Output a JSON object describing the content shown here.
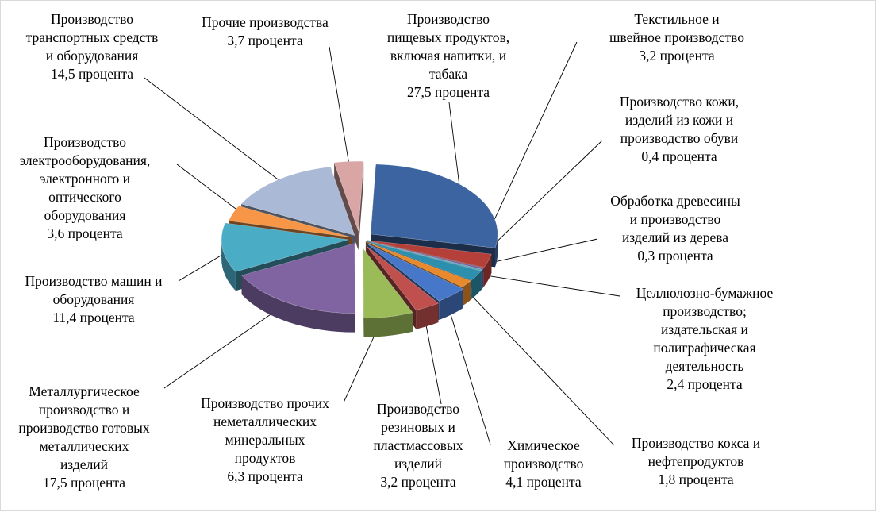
{
  "chart_data": {
    "type": "pie",
    "style": "3d-exploded",
    "unit": "процента",
    "slices": [
      {
        "name": "Производство пищевых продуктов, включая напитки, и табака",
        "value": 27.5,
        "color": "#3b64a0",
        "lines": [
          "Производство",
          "пищевых продуктов,",
          "включая напитки, и",
          "табака",
          "27,5 процента"
        ]
      },
      {
        "name": "Текстильное и швейное производство",
        "value": 3.2,
        "color": "#b5403a",
        "lines": [
          "Текстильное и",
          "швейное производство",
          "3,2 процента"
        ]
      },
      {
        "name": "Производство кожи, изделий из кожи и производство обуви",
        "value": 0.4,
        "color": "#7a5f9a",
        "lines": [
          "Производство кожи,",
          "изделий из кожи и",
          "производство обуви",
          "0,4 процента"
        ]
      },
      {
        "name": "Обработка древесины и производство изделий из дерева",
        "value": 0.3,
        "color": "#4ea6c0",
        "lines": [
          "Обработка древесины",
          "и производство",
          "изделий  из дерева",
          "0,3 процента"
        ]
      },
      {
        "name": "Целлюлозно-бумажное производство; издательская и полиграфическая деятельность",
        "value": 2.4,
        "color": "#2d8fae",
        "lines": [
          "Целлюлозно-бумажное",
          "производство;",
          "издательская и",
          "полиграфическая",
          "деятельность",
          "2,4  процента"
        ]
      },
      {
        "name": "Производство кокса и нефтепродуктов",
        "value": 1.8,
        "color": "#e8892e",
        "lines": [
          "Производство кокса и",
          "нефтепродуктов",
          "1,8 процента"
        ]
      },
      {
        "name": "Химическое производство",
        "value": 4.1,
        "color": "#4677c8",
        "lines": [
          "Химическое",
          "производство",
          "4,1 процента"
        ]
      },
      {
        "name": "Производство резиновых и пластмассовых изделий",
        "value": 3.2,
        "color": "#c0504d",
        "lines": [
          "Производство",
          "резиновых и",
          "пластмассовых",
          "изделий",
          "3,2  процента"
        ]
      },
      {
        "name": "Производство прочих неметаллических минеральных продуктов",
        "value": 6.3,
        "color": "#9bbb59",
        "lines": [
          "Производство прочих",
          "неметаллических",
          "минеральных",
          "продуктов",
          "6,3 процента"
        ]
      },
      {
        "name": "Металлургическое производство и производство готовых металлических изделий",
        "value": 17.5,
        "color": "#8064a2",
        "lines": [
          "Металлургическое",
          "производство и",
          "производство готовых",
          "металлических",
          "изделий",
          "17,5 процента"
        ]
      },
      {
        "name": "Производство машин и оборудования",
        "value": 11.4,
        "color": "#4bacc6",
        "lines": [
          "Производство машин и",
          "оборудования",
          "11,4 процента"
        ]
      },
      {
        "name": "Производство электрооборудования, электронного и оптического оборудования",
        "value": 3.6,
        "color": "#f79646",
        "lines": [
          "Производство",
          "электрооборудования,",
          "электронного и",
          "оптического",
          "оборудования",
          "3,6 процента"
        ]
      },
      {
        "name": "Производство транспортных средств и оборудования",
        "value": 14.5,
        "color": "#aab9d6",
        "lines": [
          "Производство",
          "транспортных средств",
          "и  оборудования",
          "14,5 процента"
        ]
      },
      {
        "name": "Прочие производства",
        "value": 3.7,
        "color": "#d9a6a5",
        "lines": [
          "Прочие производства",
          "3,7 процента"
        ]
      }
    ]
  }
}
